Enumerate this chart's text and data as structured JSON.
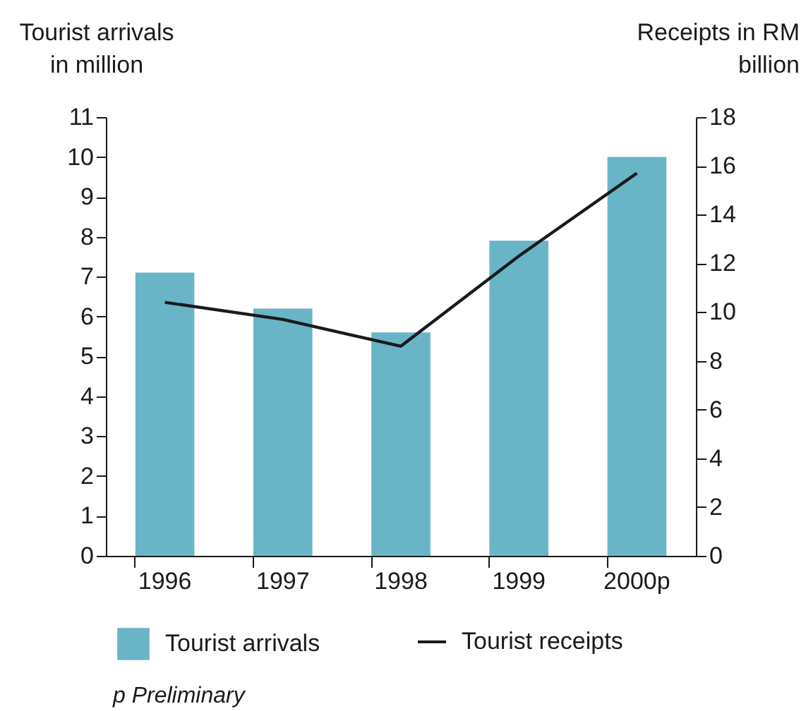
{
  "chart_data": {
    "type": "bar",
    "categories": [
      "1996",
      "1997",
      "1998",
      "1999",
      "2000p"
    ],
    "ylabel": "Tourist arrivals\nin million",
    "y2label": "Receipts in RM\nbillion",
    "ylim": [
      0,
      11
    ],
    "yticks": [
      0,
      1,
      2,
      3,
      4,
      5,
      6,
      7,
      8,
      9,
      10,
      11
    ],
    "y2lim": [
      0,
      18
    ],
    "y2ticks": [
      0,
      2,
      4,
      6,
      8,
      10,
      12,
      14,
      16,
      18
    ],
    "series": [
      {
        "name": "Tourist arrivals",
        "color": "#6ab4c8",
        "values": [
          7.1,
          6.2,
          5.6,
          7.9,
          10.0
        ]
      },
      {
        "name": "Tourist receipts",
        "type": "line",
        "axis": "y2",
        "color": "#1a1a1a",
        "values": [
          10.4,
          9.7,
          8.6,
          12.3,
          15.7
        ]
      }
    ],
    "legend": "bottom",
    "grid": false,
    "annotations": [
      "p Preliminary"
    ]
  }
}
